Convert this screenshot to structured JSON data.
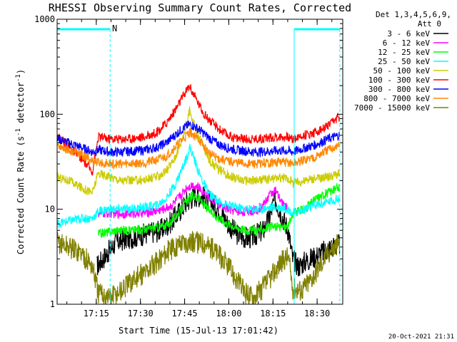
{
  "chart_data": {
    "type": "line",
    "title": "RHESSI Observing Summary Count Rates, Corrected",
    "xlabel": "Start Time (15-Jul-13 17:01:42)",
    "ylabel_main": "Corrected Count Rate (s",
    "ylabel_sup1": "-1",
    "ylabel_mid": " detector",
    "ylabel_sup2": "-1",
    "ylabel_end": ")",
    "y_scale": "log",
    "ylim": [
      1,
      1000
    ],
    "xlim_minutes": [
      0,
      97
    ],
    "x_ticks": [
      {
        "label": "17:15",
        "t": 13.3
      },
      {
        "label": "17:30",
        "t": 28.3
      },
      {
        "label": "17:45",
        "t": 43.3
      },
      {
        "label": "18:00",
        "t": 58.3
      },
      {
        "label": "18:15",
        "t": 73.3
      },
      {
        "label": "18:30",
        "t": 88.3
      }
    ],
    "y_ticks": [
      {
        "label": "1000",
        "v": 1000
      },
      {
        "label": "100",
        "v": 100
      },
      {
        "label": "10",
        "v": 10
      },
      {
        "label": "1",
        "v": 1
      }
    ],
    "legend_header": [
      "Det 1,3,4,5,6,9,",
      "Att 0"
    ],
    "legend_position": "right",
    "annotation": "N",
    "timestamp": "20-Oct-2021 21:31",
    "attenuator_markers_minutes": [
      18,
      80.5,
      96
    ],
    "series": [
      {
        "name": "3 - 6 keV",
        "color": "#000000",
        "t": [
          13.5,
          20,
          25,
          30,
          35,
          38,
          41,
          44,
          47,
          50,
          52,
          55,
          58,
          61,
          64,
          66,
          68,
          70,
          72,
          74,
          76,
          78.5,
          80,
          82,
          84,
          86,
          88,
          90,
          93,
          96
        ],
        "v": [
          2.5,
          4.5,
          5.0,
          5.5,
          6.0,
          7.0,
          9.0,
          12.0,
          14.0,
          13.5,
          12.0,
          10.0,
          7.0,
          5.5,
          5.0,
          5.0,
          5.5,
          6.0,
          8.0,
          13.0,
          9.0,
          6.0,
          3.0,
          2.5,
          2.8,
          3.0,
          3.2,
          3.5,
          4.0,
          4.2
        ]
      },
      {
        "name": "6 - 12 keV",
        "color": "#ff00ff",
        "t": [
          14,
          20,
          25,
          30,
          33,
          36,
          39,
          42,
          44,
          46,
          48,
          50,
          52,
          55,
          58,
          61,
          64,
          66,
          68,
          70,
          72,
          74,
          76,
          78.5
        ],
        "v": [
          9.0,
          9.0,
          9.0,
          9.2,
          9.5,
          10.0,
          11.0,
          14.0,
          17.0,
          18.0,
          17.0,
          15.0,
          13.0,
          11.0,
          10.0,
          9.5,
          9.5,
          9.5,
          10.0,
          11.0,
          14.0,
          16.0,
          12.0,
          10.0
        ]
      },
      {
        "name": "12 - 25 keV",
        "color": "#00ff00",
        "t": [
          14,
          20,
          25,
          30,
          35,
          38,
          41,
          44,
          46,
          48,
          50,
          52,
          55,
          58,
          61,
          64,
          67,
          70,
          73,
          76,
          78.5,
          80,
          84,
          88,
          92,
          96
        ],
        "v": [
          5.5,
          6.0,
          6.0,
          6.2,
          6.5,
          7.0,
          9.0,
          12.0,
          14.0,
          13.0,
          11.0,
          9.5,
          8.0,
          7.0,
          6.5,
          6.0,
          6.0,
          6.2,
          6.5,
          6.5,
          6.5,
          9.0,
          10.0,
          13.0,
          15.0,
          17.0
        ]
      },
      {
        "name": "25 - 50 keV",
        "color": "#00ffff",
        "t": [
          0,
          4,
          8,
          12,
          14,
          18,
          22,
          26,
          30,
          34,
          37,
          40,
          42,
          44,
          45,
          46,
          48,
          50,
          52,
          55,
          58,
          61,
          64,
          67,
          70,
          73,
          76,
          78.5,
          80,
          84,
          88,
          92,
          96
        ],
        "v": [
          7.0,
          7.5,
          8.0,
          8.0,
          9.5,
          10.0,
          10.0,
          10.2,
          10.5,
          11.0,
          13.0,
          18.0,
          25.0,
          35.0,
          45.0,
          38.0,
          25.0,
          18.0,
          14.0,
          12.0,
          11.0,
          10.5,
          10.0,
          10.0,
          10.2,
          10.5,
          10.5,
          10.0,
          9.0,
          10.0,
          11.0,
          12.0,
          13.0
        ]
      },
      {
        "name": "50 - 100 keV",
        "color": "#cccc00",
        "t": [
          0,
          4,
          8,
          12,
          14,
          18,
          22,
          26,
          30,
          34,
          37,
          40,
          42,
          44,
          45,
          46,
          48,
          50,
          52,
          55,
          58,
          61,
          64,
          67,
          70,
          73,
          76,
          78.5,
          80,
          84,
          88,
          92,
          96
        ],
        "v": [
          22.0,
          20.0,
          17.0,
          15.0,
          24.0,
          22.0,
          20.0,
          20.0,
          20.5,
          22.0,
          25.0,
          35.0,
          50.0,
          80.0,
          110.0,
          90.0,
          60.0,
          42.0,
          32.0,
          26.0,
          23.0,
          21.0,
          20.0,
          20.0,
          20.5,
          21.0,
          21.5,
          21.0,
          19.0,
          20.0,
          21.0,
          22.0,
          24.0
        ]
      },
      {
        "name": "100 - 300 keV",
        "color": "#ff0000",
        "t": [
          0,
          4,
          8,
          12,
          14,
          18,
          22,
          26,
          30,
          34,
          37,
          40,
          42,
          44,
          45,
          46,
          48,
          50,
          52,
          55,
          58,
          61,
          64,
          67,
          70,
          73,
          76,
          78.5,
          80,
          84,
          88,
          92,
          96
        ],
        "v": [
          60.0,
          45.0,
          35.0,
          25.0,
          58.0,
          55.0,
          55.0,
          56.0,
          58.0,
          65.0,
          80.0,
          110.0,
          140.0,
          180.0,
          200.0,
          170.0,
          130.0,
          100.0,
          85.0,
          70.0,
          60.0,
          56.0,
          55.0,
          55.0,
          56.0,
          57.0,
          58.0,
          57.0,
          55.0,
          60.0,
          65.0,
          75.0,
          95.0
        ]
      },
      {
        "name": "300 - 800 keV",
        "color": "#0000ff",
        "t": [
          0,
          4,
          8,
          12,
          14,
          18,
          22,
          26,
          30,
          34,
          37,
          40,
          42,
          44,
          45,
          46,
          48,
          50,
          52,
          55,
          58,
          61,
          64,
          67,
          70,
          73,
          76,
          78.5,
          80,
          84,
          88,
          92,
          96
        ],
        "v": [
          55.0,
          50.0,
          45.0,
          40.0,
          42.0,
          40.0,
          40.0,
          41.0,
          42.0,
          45.0,
          50.0,
          60.0,
          68.0,
          75.0,
          78.0,
          76.0,
          70.0,
          62.0,
          55.0,
          48.0,
          44.0,
          42.0,
          41.0,
          40.0,
          40.5,
          41.0,
          41.5,
          41.0,
          40.0,
          44.0,
          48.0,
          55.0,
          60.0
        ]
      },
      {
        "name": "800 - 7000 keV",
        "color": "#ff8800",
        "t": [
          0,
          4,
          8,
          12,
          14,
          18,
          22,
          26,
          30,
          34,
          37,
          40,
          42,
          44,
          45,
          46,
          48,
          50,
          52,
          55,
          58,
          61,
          64,
          67,
          70,
          73,
          76,
          78.5,
          80,
          84,
          88,
          92,
          96
        ],
        "v": [
          48.0,
          42.0,
          38.0,
          32.0,
          31.0,
          30.0,
          30.0,
          30.5,
          31.0,
          33.0,
          36.0,
          45.0,
          52.0,
          60.0,
          65.0,
          62.0,
          55.0,
          45.0,
          38.0,
          34.0,
          32.0,
          31.0,
          30.0,
          30.0,
          30.5,
          31.0,
          31.5,
          31.0,
          30.0,
          33.0,
          36.0,
          42.0,
          47.0
        ]
      },
      {
        "name": "7000 - 15000 keV",
        "color": "#808000",
        "t": [
          0,
          4,
          8,
          12,
          14,
          18,
          22,
          26,
          30,
          34,
          37,
          40,
          42,
          44,
          46,
          48,
          50,
          52,
          54,
          56,
          58,
          61,
          64,
          67,
          70,
          73,
          76,
          78.5,
          80,
          83,
          86,
          89,
          92,
          96
        ],
        "v": [
          4.5,
          4.0,
          3.5,
          2.5,
          1.3,
          1.2,
          1.4,
          1.8,
          2.2,
          2.8,
          3.5,
          4.0,
          4.5,
          4.5,
          4.5,
          4.5,
          4.5,
          4.0,
          3.5,
          3.0,
          2.5,
          1.8,
          1.3,
          1.2,
          1.5,
          2.0,
          2.8,
          3.2,
          1.5,
          1.4,
          1.8,
          2.5,
          3.5,
          4.5
        ]
      }
    ]
  }
}
